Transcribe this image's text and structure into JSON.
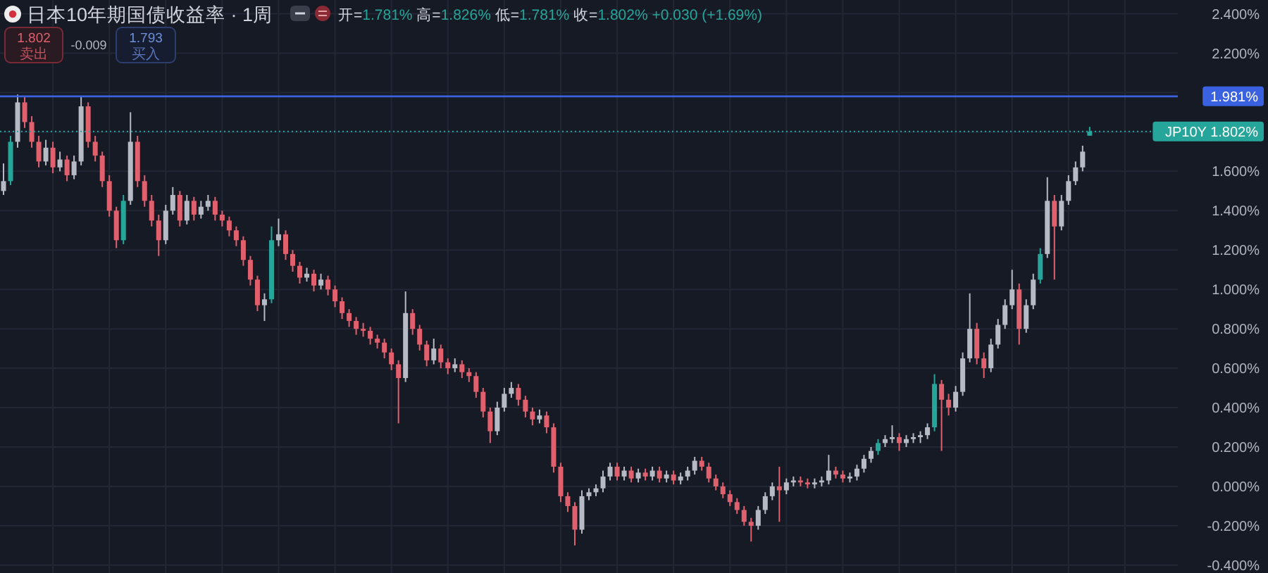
{
  "chart_data": {
    "type": "candlestick",
    "title": "日本10年期国债收益率 · 1周",
    "subtitle": "开=1.781% 高=1.826% 低=1.781% 收=1.802% +0.030 (+1.69%)",
    "annotations": [
      "1.802",
      "卖出",
      "-0.009",
      "1.793",
      "买入"
    ],
    "categories": [
      null,
      null,
      null,
      null,
      null,
      null,
      null,
      null,
      null,
      null,
      null,
      null,
      null,
      null,
      null,
      null,
      null,
      null,
      null,
      null,
      null,
      null,
      null,
      null,
      null,
      null,
      null,
      null,
      null,
      null,
      null,
      null,
      null,
      null,
      null,
      null,
      null,
      null,
      null,
      null,
      null,
      null,
      null,
      null,
      null,
      null,
      null,
      null,
      null,
      null,
      null,
      null,
      null,
      null,
      null,
      null,
      null,
      null,
      null,
      null,
      null,
      null,
      null,
      null,
      null,
      null,
      null,
      null,
      null,
      null,
      null,
      null,
      null,
      null,
      null,
      null,
      null,
      null,
      null,
      null,
      null,
      null,
      null,
      null,
      null,
      null,
      null,
      null,
      null,
      null,
      null,
      null,
      null,
      null,
      null,
      null,
      null,
      null,
      null,
      null,
      null,
      null,
      null,
      null,
      null,
      null,
      null,
      null,
      null,
      null,
      null,
      null,
      null,
      null,
      null,
      null,
      null,
      null,
      null,
      null,
      null,
      null,
      null,
      null,
      null,
      null,
      null,
      null,
      null,
      null,
      null,
      null,
      null,
      null,
      null,
      null,
      null,
      null,
      null,
      null,
      null,
      null,
      null,
      null,
      null,
      null,
      null,
      null,
      null,
      null,
      null,
      null,
      null,
      null,
      null,
      null,
      null,
      null,
      null,
      null,
      null,
      null,
      null,
      null,
      null,
      null,
      null
    ],
    "ohlc": [
      [
        1.5,
        1.64,
        1.48,
        1.55
      ],
      [
        1.55,
        1.78,
        1.53,
        1.75
      ],
      [
        1.75,
        1.99,
        1.72,
        1.95
      ],
      [
        1.95,
        1.98,
        1.82,
        1.85
      ],
      [
        1.85,
        1.88,
        1.72,
        1.75
      ],
      [
        1.75,
        1.78,
        1.62,
        1.65
      ],
      [
        1.65,
        1.76,
        1.63,
        1.72
      ],
      [
        1.72,
        1.75,
        1.59,
        1.62
      ],
      [
        1.62,
        1.7,
        1.6,
        1.66
      ],
      [
        1.66,
        1.68,
        1.55,
        1.58
      ],
      [
        1.58,
        1.68,
        1.56,
        1.65
      ],
      [
        1.65,
        1.98,
        1.63,
        1.93
      ],
      [
        1.93,
        1.95,
        1.72,
        1.75
      ],
      [
        1.75,
        1.78,
        1.65,
        1.68
      ],
      [
        1.68,
        1.7,
        1.52,
        1.55
      ],
      [
        1.55,
        1.58,
        1.37,
        1.4
      ],
      [
        1.4,
        1.42,
        1.21,
        1.25
      ],
      [
        1.25,
        1.48,
        1.23,
        1.45
      ],
      [
        1.45,
        1.9,
        1.43,
        1.75
      ],
      [
        1.75,
        1.78,
        1.52,
        1.55
      ],
      [
        1.55,
        1.58,
        1.42,
        1.45
      ],
      [
        1.45,
        1.48,
        1.32,
        1.35
      ],
      [
        1.35,
        1.38,
        1.17,
        1.25
      ],
      [
        1.25,
        1.43,
        1.23,
        1.4
      ],
      [
        1.4,
        1.52,
        1.38,
        1.48
      ],
      [
        1.48,
        1.5,
        1.32,
        1.35
      ],
      [
        1.35,
        1.48,
        1.33,
        1.45
      ],
      [
        1.45,
        1.47,
        1.35,
        1.38
      ],
      [
        1.38,
        1.45,
        1.36,
        1.42
      ],
      [
        1.42,
        1.48,
        1.4,
        1.45
      ],
      [
        1.45,
        1.47,
        1.35,
        1.38
      ],
      [
        1.38,
        1.4,
        1.32,
        1.35
      ],
      [
        1.35,
        1.37,
        1.27,
        1.3
      ],
      [
        1.3,
        1.32,
        1.22,
        1.25
      ],
      [
        1.25,
        1.27,
        1.12,
        1.15
      ],
      [
        1.15,
        1.17,
        1.02,
        1.05
      ],
      [
        1.05,
        1.07,
        0.89,
        0.92
      ],
      [
        0.92,
        0.98,
        0.84,
        0.95
      ],
      [
        0.95,
        1.32,
        0.93,
        1.25
      ],
      [
        1.25,
        1.36,
        1.22,
        1.28
      ],
      [
        1.28,
        1.3,
        1.15,
        1.18
      ],
      [
        1.18,
        1.2,
        1.09,
        1.12
      ],
      [
        1.12,
        1.14,
        1.03,
        1.06
      ],
      [
        1.06,
        1.11,
        1.04,
        1.08
      ],
      [
        1.08,
        1.1,
        0.99,
        1.02
      ],
      [
        1.02,
        1.08,
        1.0,
        1.05
      ],
      [
        1.05,
        1.07,
        0.97,
        1.0
      ],
      [
        1.0,
        1.02,
        0.91,
        0.94
      ],
      [
        0.94,
        0.96,
        0.85,
        0.88
      ],
      [
        0.88,
        0.9,
        0.81,
        0.84
      ],
      [
        0.84,
        0.86,
        0.77,
        0.8
      ],
      [
        0.8,
        0.83,
        0.76,
        0.79
      ],
      [
        0.79,
        0.81,
        0.72,
        0.75
      ],
      [
        0.75,
        0.77,
        0.7,
        0.73
      ],
      [
        0.73,
        0.75,
        0.65,
        0.68
      ],
      [
        0.68,
        0.7,
        0.59,
        0.62
      ],
      [
        0.62,
        0.64,
        0.32,
        0.55
      ],
      [
        0.55,
        0.99,
        0.53,
        0.88
      ],
      [
        0.88,
        0.9,
        0.77,
        0.8
      ],
      [
        0.8,
        0.82,
        0.69,
        0.72
      ],
      [
        0.72,
        0.74,
        0.61,
        0.64
      ],
      [
        0.64,
        0.75,
        0.62,
        0.7
      ],
      [
        0.7,
        0.72,
        0.6,
        0.63
      ],
      [
        0.63,
        0.65,
        0.57,
        0.6
      ],
      [
        0.6,
        0.65,
        0.58,
        0.62
      ],
      [
        0.62,
        0.64,
        0.55,
        0.58
      ],
      [
        0.58,
        0.6,
        0.53,
        0.56
      ],
      [
        0.56,
        0.58,
        0.45,
        0.48
      ],
      [
        0.48,
        0.5,
        0.35,
        0.38
      ],
      [
        0.38,
        0.4,
        0.22,
        0.28
      ],
      [
        0.28,
        0.43,
        0.26,
        0.4
      ],
      [
        0.4,
        0.5,
        0.38,
        0.47
      ],
      [
        0.47,
        0.53,
        0.45,
        0.5
      ],
      [
        0.5,
        0.52,
        0.41,
        0.44
      ],
      [
        0.44,
        0.46,
        0.35,
        0.38
      ],
      [
        0.38,
        0.4,
        0.31,
        0.34
      ],
      [
        0.34,
        0.39,
        0.32,
        0.36
      ],
      [
        0.36,
        0.38,
        0.27,
        0.3
      ],
      [
        0.3,
        0.32,
        0.07,
        0.1
      ],
      [
        0.1,
        0.12,
        -0.08,
        -0.05
      ],
      [
        -0.05,
        -0.03,
        -0.13,
        -0.1
      ],
      [
        -0.1,
        -0.08,
        -0.3,
        -0.22
      ],
      [
        -0.22,
        -0.02,
        -0.24,
        -0.05
      ],
      [
        -0.05,
        -0.01,
        -0.07,
        -0.03
      ],
      [
        -0.03,
        0.01,
        -0.05,
        -0.01
      ],
      [
        -0.01,
        0.08,
        -0.03,
        0.05
      ],
      [
        0.05,
        0.12,
        0.03,
        0.1
      ],
      [
        0.1,
        0.12,
        0.03,
        0.05
      ],
      [
        0.05,
        0.1,
        0.03,
        0.08
      ],
      [
        0.08,
        0.1,
        0.02,
        0.04
      ],
      [
        0.04,
        0.09,
        0.02,
        0.07
      ],
      [
        0.07,
        0.09,
        0.03,
        0.05
      ],
      [
        0.05,
        0.1,
        0.03,
        0.08
      ],
      [
        0.08,
        0.1,
        0.02,
        0.04
      ],
      [
        0.04,
        0.08,
        0.02,
        0.06
      ],
      [
        0.06,
        0.08,
        0.01,
        0.03
      ],
      [
        0.03,
        0.07,
        0.01,
        0.05
      ],
      [
        0.05,
        0.1,
        0.03,
        0.08
      ],
      [
        0.08,
        0.15,
        0.06,
        0.13
      ],
      [
        0.13,
        0.15,
        0.08,
        0.1
      ],
      [
        0.1,
        0.12,
        0.02,
        0.04
      ],
      [
        0.04,
        0.06,
        -0.02,
        0.0
      ],
      [
        0.0,
        0.02,
        -0.06,
        -0.04
      ],
      [
        -0.04,
        -0.02,
        -0.1,
        -0.08
      ],
      [
        -0.08,
        -0.06,
        -0.14,
        -0.12
      ],
      [
        -0.12,
        -0.1,
        -0.2,
        -0.18
      ],
      [
        -0.18,
        -0.16,
        -0.28,
        -0.2
      ],
      [
        -0.2,
        -0.1,
        -0.22,
        -0.12
      ],
      [
        -0.12,
        -0.03,
        -0.14,
        -0.05
      ],
      [
        -0.05,
        0.02,
        -0.07,
        0.0
      ],
      [
        0.0,
        0.1,
        -0.18,
        -0.02
      ],
      [
        -0.02,
        0.04,
        -0.04,
        0.02
      ],
      [
        0.02,
        0.05,
        0.0,
        0.03
      ],
      [
        0.03,
        0.05,
        0.0,
        0.02
      ],
      [
        0.02,
        0.04,
        -0.01,
        0.01
      ],
      [
        0.01,
        0.04,
        -0.01,
        0.02
      ],
      [
        0.02,
        0.05,
        0.0,
        0.03
      ],
      [
        0.03,
        0.16,
        0.01,
        0.08
      ],
      [
        0.08,
        0.1,
        0.04,
        0.06
      ],
      [
        0.06,
        0.08,
        0.02,
        0.04
      ],
      [
        0.04,
        0.07,
        0.02,
        0.05
      ],
      [
        0.05,
        0.11,
        0.03,
        0.09
      ],
      [
        0.09,
        0.16,
        0.07,
        0.14
      ],
      [
        0.14,
        0.2,
        0.12,
        0.18
      ],
      [
        0.18,
        0.24,
        0.16,
        0.22
      ],
      [
        0.22,
        0.26,
        0.2,
        0.24
      ],
      [
        0.24,
        0.31,
        0.22,
        0.25
      ],
      [
        0.25,
        0.27,
        0.18,
        0.22
      ],
      [
        0.22,
        0.26,
        0.2,
        0.24
      ],
      [
        0.24,
        0.27,
        0.22,
        0.25
      ],
      [
        0.25,
        0.28,
        0.22,
        0.26
      ],
      [
        0.26,
        0.32,
        0.24,
        0.3
      ],
      [
        0.3,
        0.57,
        0.28,
        0.52
      ],
      [
        0.52,
        0.54,
        0.18,
        0.44
      ],
      [
        0.44,
        0.47,
        0.36,
        0.4
      ],
      [
        0.4,
        0.51,
        0.38,
        0.48
      ],
      [
        0.48,
        0.68,
        0.46,
        0.65
      ],
      [
        0.65,
        0.98,
        0.63,
        0.8
      ],
      [
        0.8,
        0.83,
        0.62,
        0.65
      ],
      [
        0.65,
        0.68,
        0.55,
        0.6
      ],
      [
        0.6,
        0.75,
        0.58,
        0.72
      ],
      [
        0.72,
        0.85,
        0.7,
        0.82
      ],
      [
        0.82,
        0.95,
        0.8,
        0.92
      ],
      [
        0.92,
        1.1,
        0.9,
        1.0
      ],
      [
        1.0,
        1.03,
        0.72,
        0.8
      ],
      [
        0.8,
        0.95,
        0.78,
        0.92
      ],
      [
        0.92,
        1.08,
        0.9,
        1.05
      ],
      [
        1.05,
        1.21,
        1.03,
        1.18
      ],
      [
        1.18,
        1.57,
        1.16,
        1.45
      ],
      [
        1.45,
        1.48,
        1.05,
        1.32
      ],
      [
        1.32,
        1.48,
        1.3,
        1.45
      ],
      [
        1.45,
        1.58,
        1.43,
        1.55
      ],
      [
        1.55,
        1.65,
        1.53,
        1.62
      ],
      [
        1.62,
        1.73,
        1.6,
        1.7
      ],
      [
        1.781,
        1.826,
        1.781,
        1.802
      ],
      null,
      null,
      null,
      null,
      null,
      null,
      null,
      null,
      null,
      null,
      null,
      null
    ],
    "colors": [
      "#b6bac4",
      "#26a69a",
      "#b6bac4",
      "#e0606e",
      "#e0606e",
      "#e0606e",
      "#b6bac4",
      "#e0606e",
      "#b6bac4",
      "#e0606e",
      "#b6bac4",
      "#b6bac4",
      "#e0606e",
      "#e0606e",
      "#e0606e",
      "#e0606e",
      "#e0606e",
      "#26a69a",
      "#b6bac4",
      "#e0606e",
      "#e0606e",
      "#e0606e",
      "#e0606e",
      "#b6bac4",
      "#b6bac4",
      "#e0606e",
      "#b6bac4",
      "#e0606e",
      "#b6bac4",
      "#b6bac4",
      "#e0606e",
      "#e0606e",
      "#e0606e",
      "#e0606e",
      "#e0606e",
      "#e0606e",
      "#e0606e",
      "#b6bac4",
      "#26a69a",
      "#b6bac4",
      "#e0606e",
      "#e0606e",
      "#e0606e",
      "#b6bac4",
      "#e0606e",
      "#b6bac4",
      "#e0606e",
      "#e0606e",
      "#e0606e",
      "#e0606e",
      "#e0606e",
      "#e0606e",
      "#e0606e",
      "#e0606e",
      "#e0606e",
      "#e0606e",
      "#e0606e",
      "#b6bac4",
      "#e0606e",
      "#e0606e",
      "#e0606e",
      "#b6bac4",
      "#e0606e",
      "#e0606e",
      "#b6bac4",
      "#e0606e",
      "#e0606e",
      "#e0606e",
      "#e0606e",
      "#e0606e",
      "#b6bac4",
      "#b6bac4",
      "#b6bac4",
      "#e0606e",
      "#e0606e",
      "#e0606e",
      "#b6bac4",
      "#e0606e",
      "#e0606e",
      "#e0606e",
      "#e0606e",
      "#e0606e",
      "#b6bac4",
      "#b6bac4",
      "#b6bac4",
      "#b6bac4",
      "#b6bac4",
      "#e0606e",
      "#b6bac4",
      "#e0606e",
      "#b6bac4",
      "#e0606e",
      "#b6bac4",
      "#e0606e",
      "#b6bac4",
      "#e0606e",
      "#b6bac4",
      "#b6bac4",
      "#b6bac4",
      "#e0606e",
      "#e0606e",
      "#e0606e",
      "#e0606e",
      "#e0606e",
      "#e0606e",
      "#e0606e",
      "#e0606e",
      "#b6bac4",
      "#b6bac4",
      "#b6bac4",
      "#e0606e",
      "#b6bac4",
      "#b6bac4",
      "#e0606e",
      "#e0606e",
      "#b6bac4",
      "#b6bac4",
      "#b6bac4",
      "#e0606e",
      "#e0606e",
      "#b6bac4",
      "#b6bac4",
      "#b6bac4",
      "#b6bac4",
      "#26a69a",
      "#b6bac4",
      "#b6bac4",
      "#e0606e",
      "#b6bac4",
      "#b6bac4",
      "#b6bac4",
      "#b6bac4",
      "#26a69a",
      "#e0606e",
      "#e0606e",
      "#b6bac4",
      "#b6bac4",
      "#b6bac4",
      "#e0606e",
      "#e0606e",
      "#b6bac4",
      "#b6bac4",
      "#b6bac4",
      "#b6bac4",
      "#e0606e",
      "#b6bac4",
      "#b6bac4",
      "#26a69a",
      "#b6bac4",
      "#e0606e",
      "#b6bac4",
      "#b6bac4",
      "#b6bac4",
      "#b6bac4",
      "#26a69a",
      null,
      null,
      null,
      null,
      null,
      null,
      null,
      null,
      null,
      null,
      null,
      null
    ],
    "ylim": [
      -0.44,
      2.47
    ],
    "yticks": [
      {
        "value": -0.4,
        "label": "-0.400%"
      },
      {
        "value": -0.2,
        "label": "-0.200%"
      },
      {
        "value": 0,
        "label": "0.000%"
      },
      {
        "value": 0.2,
        "label": "0.200%"
      },
      {
        "value": 0.4,
        "label": "0.400%"
      },
      {
        "value": 0.6,
        "label": "0.600%"
      },
      {
        "value": 0.8,
        "label": "0.800%"
      },
      {
        "value": 1,
        "label": "1.000%"
      },
      {
        "value": 1.2,
        "label": "1.200%"
      },
      {
        "value": 1.4,
        "label": "1.400%"
      },
      {
        "value": 1.6,
        "label": "1.600%"
      },
      {
        "value": 1.8,
        "label": null
      },
      {
        "value": 2,
        "label": null
      },
      {
        "value": 2.2,
        "label": "2.200%"
      },
      {
        "value": 2.4,
        "label": "2.400%"
      }
    ],
    "grid": true,
    "ref_lines": [
      {
        "axis": "y",
        "value": 1.981,
        "label": "1.981%",
        "color": "#3a62e0",
        "line_style": "solid"
      },
      {
        "axis": "y",
        "value": 1.802,
        "label": "JP10Y 1.802%",
        "color": "#26a69a",
        "line_style": "dotted"
      }
    ]
  }
}
